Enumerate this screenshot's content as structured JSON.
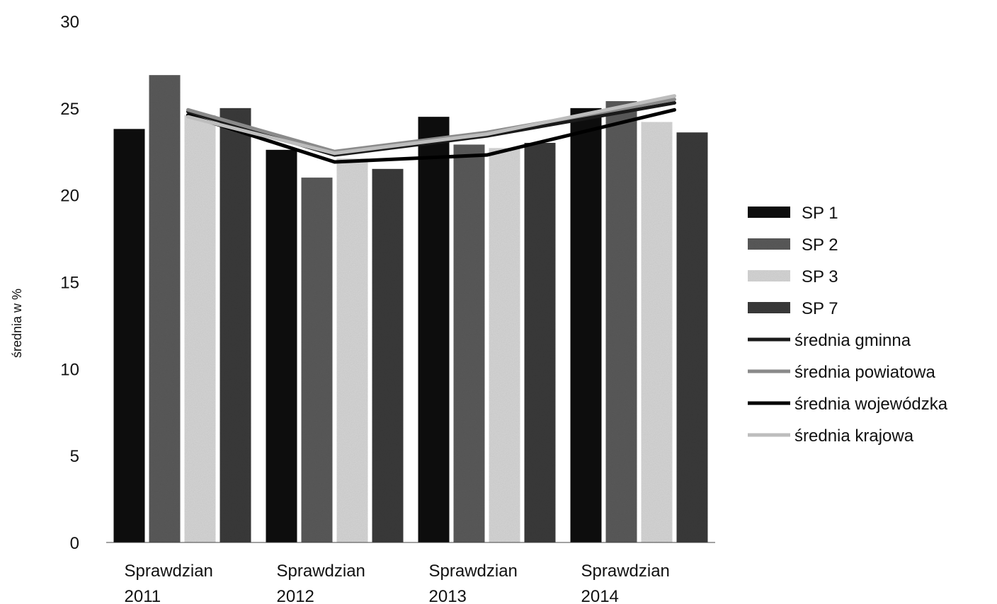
{
  "chart_data": {
    "type": "bar",
    "title": "",
    "xlabel": "",
    "ylabel": "średnia w %",
    "ylim": [
      0,
      30
    ],
    "yticks": [
      0,
      5,
      10,
      15,
      20,
      25,
      30
    ],
    "grid": false,
    "legend_position": "right",
    "categories": [
      [
        "Sprawdzian",
        "2011"
      ],
      [
        "Sprawdzian",
        "2012"
      ],
      [
        "Sprawdzian",
        "2013"
      ],
      [
        "Sprawdzian",
        "2014"
      ]
    ],
    "series": [
      {
        "name": "SP 1",
        "kind": "bar",
        "color": "#111111",
        "values": [
          23.8,
          22.6,
          24.5,
          25.0
        ]
      },
      {
        "name": "SP 2",
        "kind": "bar",
        "color": "#5a5a5a",
        "values": [
          26.9,
          21.0,
          22.9,
          25.4
        ]
      },
      {
        "name": "SP 3",
        "kind": "bar",
        "color": "#d6d6d6",
        "values": [
          24.6,
          22.1,
          22.7,
          24.2
        ]
      },
      {
        "name": "SP 7",
        "kind": "bar",
        "color": "#3a3a3a",
        "values": [
          25.0,
          21.5,
          23.0,
          23.6
        ]
      },
      {
        "name": "średnia gminna",
        "kind": "line",
        "color": "#1a1a1a",
        "values": [
          24.8,
          22.3,
          23.4,
          25.3
        ]
      },
      {
        "name": "średnia powiatowa",
        "kind": "line",
        "color": "#8a8a8a",
        "values": [
          24.9,
          22.5,
          23.6,
          25.5
        ]
      },
      {
        "name": "średnia wojewódzka",
        "kind": "line",
        "color": "#000000",
        "values": [
          24.6,
          21.9,
          22.3,
          24.9
        ]
      },
      {
        "name": "średnia krajowa",
        "kind": "line",
        "color": "#bdbdbd",
        "values": [
          24.5,
          22.4,
          23.5,
          25.7
        ]
      }
    ]
  }
}
